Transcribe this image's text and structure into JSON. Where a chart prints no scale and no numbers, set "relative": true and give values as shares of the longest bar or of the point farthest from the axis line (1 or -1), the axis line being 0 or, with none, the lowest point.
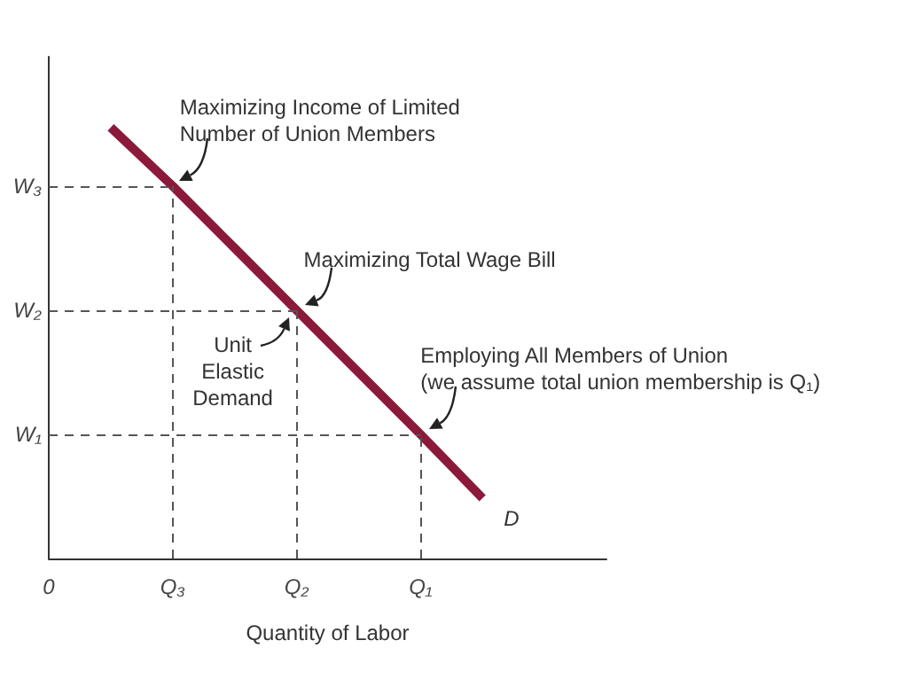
{
  "chart_data": {
    "type": "line",
    "relative": true,
    "xlabel": "Quantity of Labor",
    "grid": false,
    "marker": "none",
    "line_style": "solid",
    "categories": [
      "0",
      null,
      "Q₃",
      null,
      "Q₂",
      null,
      "Q₁",
      null,
      null,
      null
    ],
    "series": [
      {
        "color": "#8b1a3a",
        "values": [
          null,
          1,
          0.864,
          0.72,
          0.576,
          0.432,
          0.288,
          0.14,
          null,
          null
        ]
      }
    ],
    "ref_lines": [
      {
        "axis": "y",
        "value": 0.864,
        "label": "W₃",
        "color": "#555555",
        "line_style": "dashed"
      },
      {
        "axis": "y",
        "value": 0.576,
        "label": "W₂",
        "color": "#555555",
        "line_style": "dashed"
      },
      {
        "axis": "y",
        "value": 0.288,
        "label": "W₁",
        "color": "#555555",
        "line_style": "dashed"
      },
      {
        "axis": "x",
        "value": "Q₃",
        "color": "#555555",
        "line_style": "dashed"
      },
      {
        "axis": "x",
        "value": "Q₂",
        "color": "#555555",
        "line_style": "dashed"
      },
      {
        "axis": "x",
        "value": "Q₁",
        "color": "#555555",
        "line_style": "dashed"
      }
    ],
    "annotations": [
      {
        "text": "Maximizing Income of Limited\nNumber of Union Members",
        "x": "Q₃",
        "y": 0.864
      },
      {
        "text": "Maximizing Total Wage Bill",
        "x": "Q₂",
        "y": 0.576
      },
      {
        "text": "Unit\nElastic\nDemand",
        "x": "Q₂",
        "y": 0.576
      },
      {
        "text": "Employing All Members of Union\n(we assume total union membership is Q₁)",
        "x": "Q₁",
        "y": 0.288
      },
      "D"
    ]
  }
}
